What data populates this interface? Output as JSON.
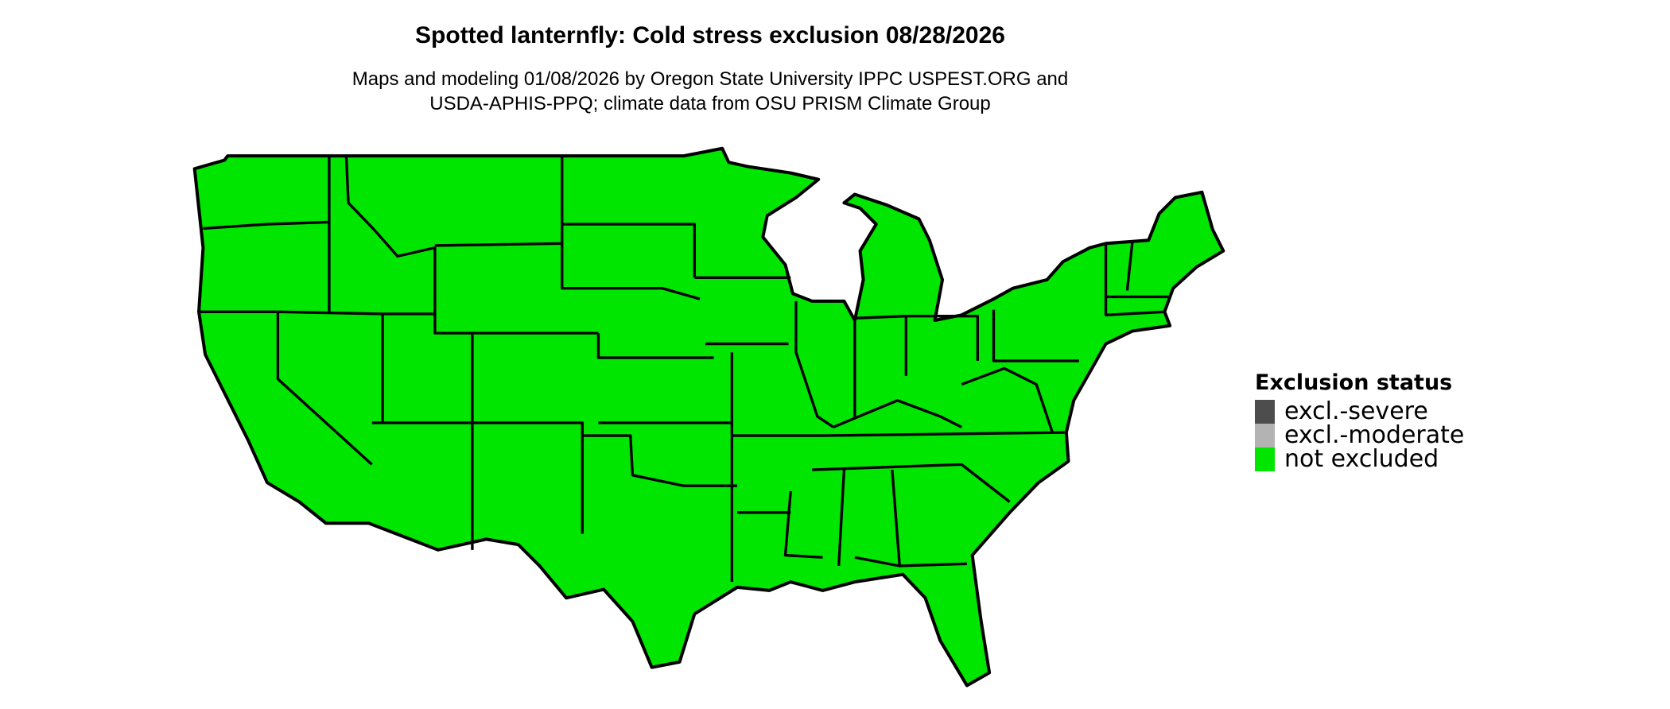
{
  "title": "Spotted lanternfly: Cold stress exclusion 08/28/2026",
  "subtitle_line1": "Maps and modeling 01/08/2026 by Oregon State University IPPC USPEST.ORG and",
  "subtitle_line2": "USDA-APHIS-PPQ; climate data from OSU PRISM Climate Group",
  "legend": {
    "title": "Exclusion status",
    "items": [
      {
        "label": "excl.-severe",
        "color": "#4d4d4d"
      },
      {
        "label": "excl.-moderate",
        "color": "#b3b3b3"
      },
      {
        "label": "not excluded",
        "color": "#00e600"
      }
    ]
  },
  "map": {
    "region": "Contiguous United States",
    "status_shown": "not excluded",
    "fill_color": "#00e600",
    "border_color": "#000000"
  }
}
